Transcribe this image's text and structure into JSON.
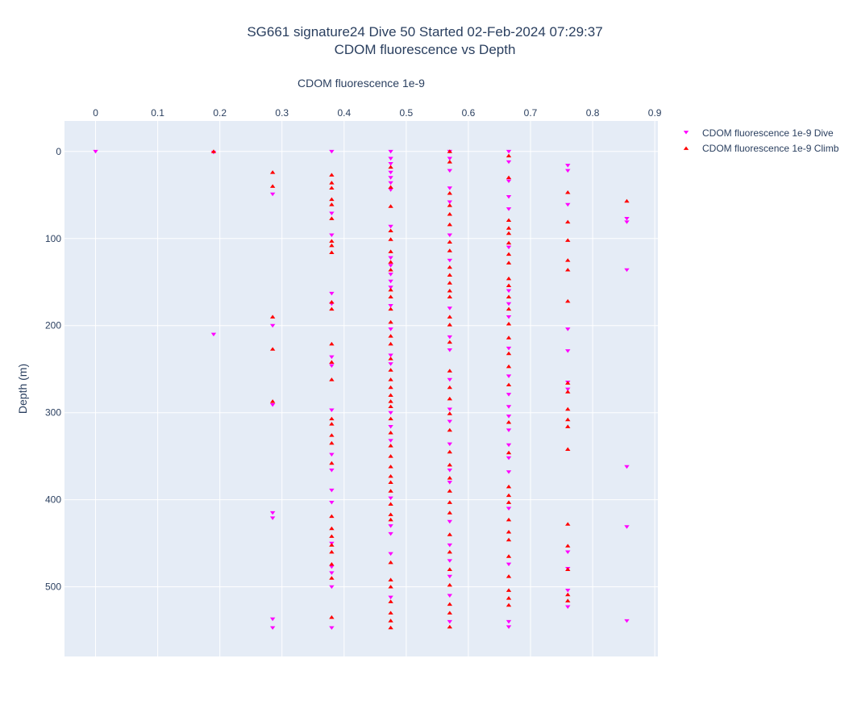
{
  "title_line1": "SG661 signature24 Dive 50 Started 02-Feb-2024 07:29:37",
  "title_line2": "CDOM fluorescence vs Depth",
  "colors": {
    "dive": "#ff00ff",
    "climb": "#ff0000",
    "plot_bg": "#e5ecf6",
    "grid": "#ffffff",
    "text": "#2a3f5f"
  },
  "chart_data": {
    "type": "scatter",
    "title": "SG661 signature24 Dive 50 Started 02-Feb-2024 07:29:37 CDOM fluorescence vs Depth",
    "xlabel": "CDOM fluorescence 1e-9",
    "ylabel": "Depth (m)",
    "x_axis_position": "top",
    "y_reversed": true,
    "xlim": [
      -0.05,
      0.905
    ],
    "ylim": [
      -35,
      580
    ],
    "xticks": [
      "0",
      "0.1",
      "0.2",
      "0.3",
      "0.4",
      "0.5",
      "0.6",
      "0.7",
      "0.8",
      "0.9"
    ],
    "yticks": [
      "0",
      "100",
      "200",
      "300",
      "400",
      "500"
    ],
    "grid": true,
    "legend_position": "top-right",
    "series": [
      {
        "name": "CDOM fluorescence 1e-9 Dive",
        "marker": "triangle-down",
        "color": "#ff00ff",
        "points": [
          [
            0,
            0
          ],
          [
            0.19,
            1
          ],
          [
            0.19,
            210
          ],
          [
            0.285,
            49
          ],
          [
            0.285,
            200
          ],
          [
            0.285,
            291
          ],
          [
            0.285,
            415
          ],
          [
            0.285,
            421
          ],
          [
            0.285,
            537
          ],
          [
            0.285,
            547
          ],
          [
            0.38,
            0
          ],
          [
            0.38,
            71
          ],
          [
            0.38,
            96
          ],
          [
            0.38,
            163
          ],
          [
            0.38,
            175
          ],
          [
            0.38,
            236
          ],
          [
            0.38,
            246
          ],
          [
            0.38,
            297
          ],
          [
            0.38,
            348
          ],
          [
            0.38,
            366
          ],
          [
            0.38,
            389
          ],
          [
            0.38,
            403
          ],
          [
            0.38,
            450
          ],
          [
            0.38,
            477
          ],
          [
            0.38,
            484
          ],
          [
            0.38,
            500
          ],
          [
            0.38,
            547
          ],
          [
            0.475,
            0
          ],
          [
            0.475,
            8
          ],
          [
            0.475,
            14
          ],
          [
            0.475,
            24
          ],
          [
            0.475,
            30
          ],
          [
            0.475,
            36
          ],
          [
            0.475,
            44
          ],
          [
            0.475,
            86
          ],
          [
            0.475,
            122
          ],
          [
            0.475,
            131
          ],
          [
            0.475,
            141
          ],
          [
            0.475,
            149
          ],
          [
            0.475,
            156
          ],
          [
            0.475,
            177
          ],
          [
            0.475,
            204
          ],
          [
            0.475,
            234
          ],
          [
            0.475,
            244
          ],
          [
            0.475,
            300
          ],
          [
            0.475,
            316
          ],
          [
            0.475,
            332
          ],
          [
            0.475,
            398
          ],
          [
            0.475,
            430
          ],
          [
            0.475,
            439
          ],
          [
            0.475,
            462
          ],
          [
            0.475,
            512
          ],
          [
            0.57,
            0
          ],
          [
            0.57,
            8
          ],
          [
            0.57,
            22
          ],
          [
            0.57,
            42
          ],
          [
            0.57,
            58
          ],
          [
            0.57,
            96
          ],
          [
            0.57,
            125
          ],
          [
            0.57,
            180
          ],
          [
            0.57,
            213
          ],
          [
            0.57,
            228
          ],
          [
            0.57,
            262
          ],
          [
            0.57,
            296
          ],
          [
            0.57,
            310
          ],
          [
            0.57,
            336
          ],
          [
            0.57,
            366
          ],
          [
            0.57,
            380
          ],
          [
            0.57,
            425
          ],
          [
            0.57,
            452
          ],
          [
            0.57,
            470
          ],
          [
            0.57,
            488
          ],
          [
            0.57,
            510
          ],
          [
            0.57,
            540
          ],
          [
            0.665,
            0
          ],
          [
            0.665,
            12
          ],
          [
            0.665,
            34
          ],
          [
            0.665,
            52
          ],
          [
            0.665,
            66
          ],
          [
            0.665,
            110
          ],
          [
            0.665,
            160
          ],
          [
            0.665,
            175
          ],
          [
            0.665,
            190
          ],
          [
            0.665,
            226
          ],
          [
            0.665,
            258
          ],
          [
            0.665,
            279
          ],
          [
            0.665,
            293
          ],
          [
            0.665,
            304
          ],
          [
            0.665,
            320
          ],
          [
            0.665,
            337
          ],
          [
            0.665,
            352
          ],
          [
            0.665,
            368
          ],
          [
            0.665,
            410
          ],
          [
            0.665,
            474
          ],
          [
            0.665,
            540
          ],
          [
            0.665,
            546
          ],
          [
            0.76,
            16
          ],
          [
            0.76,
            22
          ],
          [
            0.76,
            61
          ],
          [
            0.76,
            204
          ],
          [
            0.76,
            229
          ],
          [
            0.76,
            265
          ],
          [
            0.76,
            273
          ],
          [
            0.76,
            460
          ],
          [
            0.76,
            479
          ],
          [
            0.76,
            504
          ],
          [
            0.76,
            523
          ],
          [
            0.855,
            77
          ],
          [
            0.855,
            81
          ],
          [
            0.855,
            136
          ],
          [
            0.855,
            362
          ],
          [
            0.855,
            431
          ],
          [
            0.855,
            539
          ]
        ]
      },
      {
        "name": "CDOM fluorescence 1e-9 Climb",
        "marker": "triangle-up",
        "color": "#ff0000",
        "points": [
          [
            0.19,
            0
          ],
          [
            0.285,
            24
          ],
          [
            0.285,
            40
          ],
          [
            0.285,
            190
          ],
          [
            0.285,
            227
          ],
          [
            0.285,
            287
          ],
          [
            0.38,
            27
          ],
          [
            0.38,
            36
          ],
          [
            0.38,
            42
          ],
          [
            0.38,
            55
          ],
          [
            0.38,
            61
          ],
          [
            0.38,
            77
          ],
          [
            0.38,
            103
          ],
          [
            0.38,
            108
          ],
          [
            0.38,
            116
          ],
          [
            0.38,
            173
          ],
          [
            0.38,
            181
          ],
          [
            0.38,
            221
          ],
          [
            0.38,
            242
          ],
          [
            0.38,
            262
          ],
          [
            0.38,
            307
          ],
          [
            0.38,
            313
          ],
          [
            0.38,
            326
          ],
          [
            0.38,
            335
          ],
          [
            0.38,
            358
          ],
          [
            0.38,
            419
          ],
          [
            0.38,
            433
          ],
          [
            0.38,
            442
          ],
          [
            0.38,
            452
          ],
          [
            0.38,
            460
          ],
          [
            0.38,
            474
          ],
          [
            0.38,
            490
          ],
          [
            0.38,
            535
          ],
          [
            0.475,
            18
          ],
          [
            0.475,
            41
          ],
          [
            0.475,
            63
          ],
          [
            0.475,
            91
          ],
          [
            0.475,
            101
          ],
          [
            0.475,
            115
          ],
          [
            0.475,
            127
          ],
          [
            0.475,
            136
          ],
          [
            0.475,
            159
          ],
          [
            0.475,
            167
          ],
          [
            0.475,
            181
          ],
          [
            0.475,
            196
          ],
          [
            0.475,
            212
          ],
          [
            0.475,
            221
          ],
          [
            0.475,
            238
          ],
          [
            0.475,
            251
          ],
          [
            0.475,
            262
          ],
          [
            0.475,
            271
          ],
          [
            0.475,
            280
          ],
          [
            0.475,
            287
          ],
          [
            0.475,
            293
          ],
          [
            0.475,
            307
          ],
          [
            0.475,
            323
          ],
          [
            0.475,
            338
          ],
          [
            0.475,
            350
          ],
          [
            0.475,
            362
          ],
          [
            0.475,
            373
          ],
          [
            0.475,
            380
          ],
          [
            0.475,
            390
          ],
          [
            0.475,
            405
          ],
          [
            0.475,
            417
          ],
          [
            0.475,
            423
          ],
          [
            0.475,
            472
          ],
          [
            0.475,
            492
          ],
          [
            0.475,
            500
          ],
          [
            0.475,
            517
          ],
          [
            0.475,
            530
          ],
          [
            0.475,
            539
          ],
          [
            0.475,
            547
          ],
          [
            0.57,
            0
          ],
          [
            0.57,
            12
          ],
          [
            0.57,
            48
          ],
          [
            0.57,
            62
          ],
          [
            0.57,
            72
          ],
          [
            0.57,
            84
          ],
          [
            0.57,
            104
          ],
          [
            0.57,
            114
          ],
          [
            0.57,
            133
          ],
          [
            0.57,
            142
          ],
          [
            0.57,
            151
          ],
          [
            0.57,
            160
          ],
          [
            0.57,
            167
          ],
          [
            0.57,
            190
          ],
          [
            0.57,
            199
          ],
          [
            0.57,
            219
          ],
          [
            0.57,
            252
          ],
          [
            0.57,
            271
          ],
          [
            0.57,
            284
          ],
          [
            0.57,
            301
          ],
          [
            0.57,
            320
          ],
          [
            0.57,
            345
          ],
          [
            0.57,
            360
          ],
          [
            0.57,
            375
          ],
          [
            0.57,
            390
          ],
          [
            0.57,
            403
          ],
          [
            0.57,
            415
          ],
          [
            0.57,
            440
          ],
          [
            0.57,
            460
          ],
          [
            0.57,
            480
          ],
          [
            0.57,
            498
          ],
          [
            0.57,
            520
          ],
          [
            0.57,
            530
          ],
          [
            0.57,
            546
          ],
          [
            0.665,
            5
          ],
          [
            0.665,
            30
          ],
          [
            0.665,
            79
          ],
          [
            0.665,
            88
          ],
          [
            0.665,
            94
          ],
          [
            0.665,
            105
          ],
          [
            0.665,
            118
          ],
          [
            0.665,
            128
          ],
          [
            0.665,
            146
          ],
          [
            0.665,
            154
          ],
          [
            0.665,
            167
          ],
          [
            0.665,
            181
          ],
          [
            0.665,
            198
          ],
          [
            0.665,
            214
          ],
          [
            0.665,
            232
          ],
          [
            0.665,
            247
          ],
          [
            0.665,
            268
          ],
          [
            0.665,
            311
          ],
          [
            0.665,
            346
          ],
          [
            0.665,
            385
          ],
          [
            0.665,
            395
          ],
          [
            0.665,
            403
          ],
          [
            0.665,
            423
          ],
          [
            0.665,
            437
          ],
          [
            0.665,
            446
          ],
          [
            0.665,
            465
          ],
          [
            0.665,
            488
          ],
          [
            0.665,
            504
          ],
          [
            0.665,
            513
          ],
          [
            0.665,
            521
          ],
          [
            0.76,
            47
          ],
          [
            0.76,
            81
          ],
          [
            0.76,
            102
          ],
          [
            0.76,
            125
          ],
          [
            0.76,
            136
          ],
          [
            0.76,
            172
          ],
          [
            0.76,
            266
          ],
          [
            0.76,
            276
          ],
          [
            0.76,
            296
          ],
          [
            0.76,
            308
          ],
          [
            0.76,
            316
          ],
          [
            0.76,
            342
          ],
          [
            0.76,
            428
          ],
          [
            0.76,
            453
          ],
          [
            0.76,
            480
          ],
          [
            0.76,
            509
          ],
          [
            0.76,
            516
          ],
          [
            0.855,
            57
          ]
        ]
      }
    ]
  }
}
